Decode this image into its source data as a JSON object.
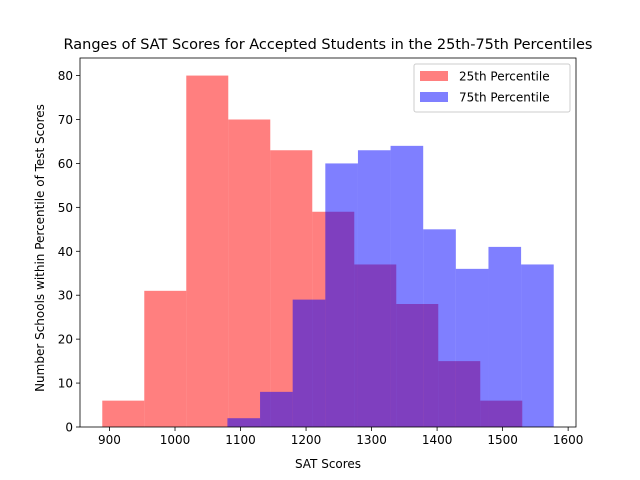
{
  "chart_data": {
    "type": "histogram",
    "title": "Ranges of SAT Scores for Accepted Students in the 25th-75th Percentiles",
    "xlabel": "SAT Scores",
    "ylabel": "Number Schools within Percentile of Test Scores",
    "xlim": [
      855,
      1612
    ],
    "ylim": [
      0,
      84
    ],
    "xticks": [
      900,
      1000,
      1100,
      1200,
      1300,
      1400,
      1500,
      1600
    ],
    "yticks": [
      0,
      10,
      20,
      30,
      40,
      50,
      60,
      70,
      80
    ],
    "legend_position": "top-right",
    "series": [
      {
        "name": "25th Percentile",
        "color": "#ff0000",
        "alpha": 0.5,
        "bin_edges": [
          889,
          953.1,
          1017.2,
          1081.3,
          1145.4,
          1209.5,
          1273.6,
          1337.7,
          1401.8,
          1465.9,
          1530
        ],
        "counts": [
          6,
          31,
          80,
          70,
          63,
          49,
          37,
          28,
          15,
          6
        ]
      },
      {
        "name": "75th Percentile",
        "color": "#0000ff",
        "alpha": 0.5,
        "bin_edges": [
          1080,
          1129.8,
          1179.6,
          1229.4,
          1279.2,
          1329,
          1378.8,
          1428.6,
          1478.4,
          1528.2,
          1578
        ],
        "counts": [
          2,
          8,
          29,
          60,
          63,
          64,
          45,
          36,
          41,
          37
        ]
      }
    ]
  }
}
